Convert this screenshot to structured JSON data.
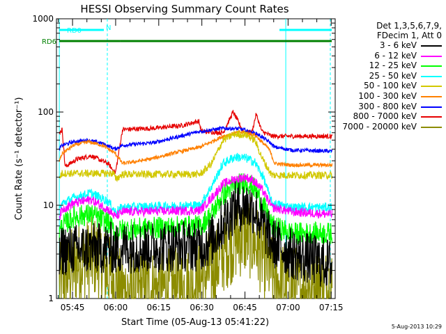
{
  "chart_data": {
    "type": "line",
    "title": "HESSI Observing Summary Count Rates",
    "xlabel": "Start Time (05-Aug-13 05:41:22)",
    "ylabel": "Count Rate (s⁻¹ detector⁻¹)",
    "yscale": "log",
    "ylim": [
      1,
      1000
    ],
    "y_ticks": [
      "1",
      "10",
      "100",
      "1000"
    ],
    "x_range_minutes": [
      -2,
      95
    ],
    "x_ticks": [
      {
        "label": "05:45",
        "t": 3.6
      },
      {
        "label": "06:00",
        "t": 18.6
      },
      {
        "label": "06:15",
        "t": 33.6
      },
      {
        "label": "06:30",
        "t": 48.6
      },
      {
        "label": "06:45",
        "t": 63.6
      },
      {
        "label": "07:00",
        "t": 78.6
      },
      {
        "label": "07:15",
        "t": 93.6
      }
    ],
    "legend": {
      "placement": "right",
      "header": [
        "Det 1,3,5,6,7,9,",
        "FDecim 1, Att 0"
      ]
    },
    "series": [
      {
        "name": "3 - 6 keV",
        "color": "#000000",
        "noise": 0.28,
        "points": [
          [
            -1,
            2.5
          ],
          [
            0,
            3.3
          ],
          [
            17,
            3.5
          ],
          [
            18.5,
            3.3
          ],
          [
            21,
            3.5
          ],
          [
            48,
            3.7
          ],
          [
            52,
            4.2
          ],
          [
            56,
            6.5
          ],
          [
            60,
            9.5
          ],
          [
            64,
            10
          ],
          [
            67,
            9
          ],
          [
            70,
            6
          ],
          [
            73,
            4
          ],
          [
            80,
            3
          ],
          [
            94,
            2.3
          ]
        ]
      },
      {
        "name": "6 - 12 keV",
        "color": "#ff00ff",
        "noise": 0.05,
        "points": [
          [
            -1,
            7.5
          ],
          [
            0,
            9
          ],
          [
            4,
            10.5
          ],
          [
            10,
            11.5
          ],
          [
            16,
            9
          ],
          [
            18.5,
            7.5
          ],
          [
            21,
            8.5
          ],
          [
            48,
            8.8
          ],
          [
            52,
            12
          ],
          [
            56,
            17
          ],
          [
            60,
            19
          ],
          [
            64,
            20
          ],
          [
            67,
            18
          ],
          [
            70,
            14
          ],
          [
            73,
            9.5
          ],
          [
            80,
            8.5
          ],
          [
            94,
            8
          ]
        ]
      },
      {
        "name": "12 - 25 keV",
        "color": "#00ff00",
        "noise": 0.12,
        "points": [
          [
            -1,
            5
          ],
          [
            0,
            6
          ],
          [
            4,
            7.5
          ],
          [
            10,
            8
          ],
          [
            16,
            6.5
          ],
          [
            18.5,
            5
          ],
          [
            21,
            5.5
          ],
          [
            48,
            6
          ],
          [
            52,
            8
          ],
          [
            56,
            13
          ],
          [
            60,
            16
          ],
          [
            64,
            18
          ],
          [
            67,
            15
          ],
          [
            70,
            10
          ],
          [
            73,
            6
          ],
          [
            80,
            5
          ],
          [
            94,
            5
          ]
        ]
      },
      {
        "name": "25 - 50 keV",
        "color": "#00ffff",
        "noise": 0.05,
        "points": [
          [
            -1,
            9
          ],
          [
            0,
            10.5
          ],
          [
            4,
            12
          ],
          [
            10,
            13.5
          ],
          [
            16,
            11
          ],
          [
            18.5,
            8.5
          ],
          [
            21,
            9.5
          ],
          [
            48,
            10
          ],
          [
            52,
            16
          ],
          [
            56,
            28
          ],
          [
            60,
            33
          ],
          [
            64,
            32
          ],
          [
            67,
            29
          ],
          [
            70,
            20
          ],
          [
            73,
            10.5
          ],
          [
            80,
            9.5
          ],
          [
            94,
            9.5
          ]
        ]
      },
      {
        "name": "50 - 100 keV",
        "color": "#d2c800",
        "noise": 0.04,
        "points": [
          [
            -1,
            20
          ],
          [
            0,
            22
          ],
          [
            18,
            22
          ],
          [
            18.5,
            19
          ],
          [
            21,
            21.5
          ],
          [
            48,
            21.5
          ],
          [
            52,
            28
          ],
          [
            56,
            50
          ],
          [
            60,
            58
          ],
          [
            64,
            57
          ],
          [
            67,
            50
          ],
          [
            70,
            30
          ],
          [
            73,
            21
          ],
          [
            80,
            21
          ],
          [
            94,
            21
          ]
        ]
      },
      {
        "name": "100 - 300 keV",
        "color": "#ff8000",
        "noise": 0.02,
        "points": [
          [
            -1,
            30
          ],
          [
            0,
            36
          ],
          [
            4,
            44
          ],
          [
            9,
            48
          ],
          [
            14,
            44
          ],
          [
            18.5,
            36
          ],
          [
            21,
            28
          ],
          [
            30,
            31
          ],
          [
            40,
            37
          ],
          [
            48,
            42
          ],
          [
            56,
            55
          ],
          [
            62,
            61
          ],
          [
            67,
            57
          ],
          [
            72,
            40
          ],
          [
            74,
            28
          ],
          [
            80,
            27
          ],
          [
            94,
            27
          ]
        ]
      },
      {
        "name": "300 - 800 keV",
        "color": "#0000ff",
        "noise": 0.02,
        "points": [
          [
            -1,
            40
          ],
          [
            0,
            44
          ],
          [
            4,
            48
          ],
          [
            9,
            50
          ],
          [
            14,
            46
          ],
          [
            18.5,
            40
          ],
          [
            21,
            44
          ],
          [
            32,
            47
          ],
          [
            42,
            56
          ],
          [
            48,
            62
          ],
          [
            56,
            67
          ],
          [
            62,
            66
          ],
          [
            68,
            58
          ],
          [
            72,
            48
          ],
          [
            74,
            42
          ],
          [
            80,
            39
          ],
          [
            94,
            38
          ]
        ]
      },
      {
        "name": "800 - 7000 keV",
        "color": "#e60000",
        "noise": 0.025,
        "points": [
          [
            -1,
            60
          ],
          [
            0,
            65
          ],
          [
            1,
            26
          ],
          [
            5,
            31
          ],
          [
            10,
            34
          ],
          [
            16,
            28
          ],
          [
            18.5,
            22
          ],
          [
            21,
            65
          ],
          [
            32,
            67
          ],
          [
            42,
            72
          ],
          [
            47.5,
            80
          ],
          [
            48.5,
            62
          ],
          [
            56,
            60
          ],
          [
            59.5,
            100
          ],
          [
            63,
            62
          ],
          [
            66,
            60
          ],
          [
            67.5,
            95
          ],
          [
            69.5,
            62
          ],
          [
            73,
            55
          ],
          [
            80,
            55
          ],
          [
            94,
            55
          ]
        ]
      },
      {
        "name": "7000 - 20000 keV",
        "color": "#8c8c00",
        "noise": 0.45,
        "points": [
          [
            -1,
            1.4
          ],
          [
            5,
            2.4
          ],
          [
            12,
            2.8
          ],
          [
            18.5,
            1.4
          ],
          [
            21,
            1.2
          ],
          [
            44,
            1.3
          ],
          [
            48,
            1.6
          ],
          [
            53,
            2.2
          ],
          [
            57,
            3.5
          ],
          [
            61,
            4.5
          ],
          [
            64,
            4.8
          ],
          [
            67,
            4
          ],
          [
            71,
            2.5
          ],
          [
            75,
            1.5
          ],
          [
            82,
            1.3
          ],
          [
            94,
            1.3
          ]
        ]
      }
    ],
    "bars": [
      {
        "label": "RD0",
        "color": "#00ffff",
        "segments": [
          [
            -1,
            14.5
          ],
          [
            75.6,
            93.8
          ]
        ]
      },
      {
        "label": "RD6",
        "color": "#008000",
        "segments": [
          [
            -1,
            20.2
          ],
          [
            20.2,
            50.5
          ],
          [
            50.5,
            75.6
          ],
          [
            75.6,
            93.8
          ]
        ]
      }
    ],
    "bar_extra_label": "N",
    "vlines": [
      {
        "t": -1,
        "style": "solid"
      },
      {
        "t": 15.7,
        "style": "dashed"
      },
      {
        "t": 77.8,
        "style": "solid"
      },
      {
        "t": 93.3,
        "style": "dashed"
      }
    ]
  },
  "timestamp": "5-Aug-2013 10:29"
}
